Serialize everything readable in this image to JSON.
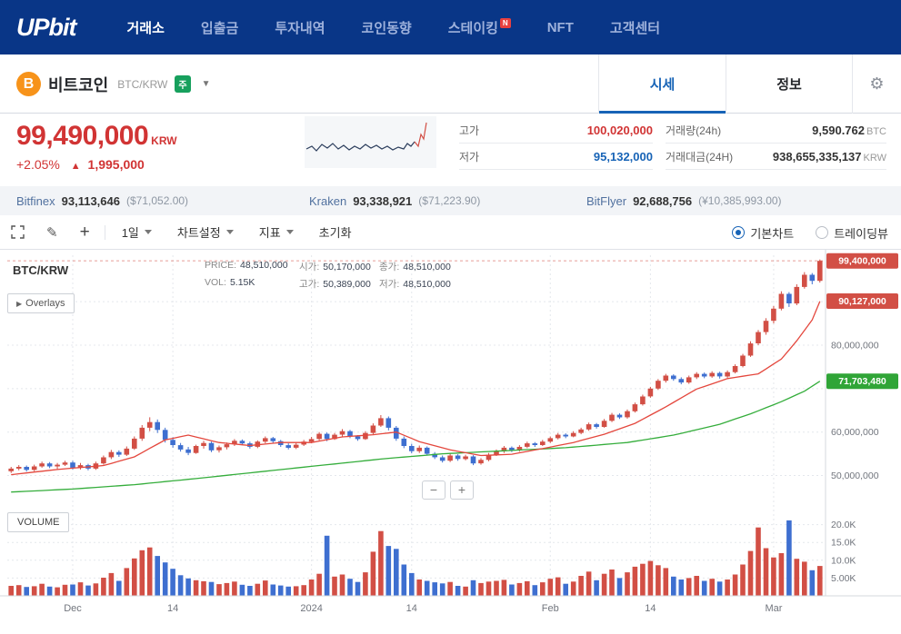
{
  "nav": {
    "logo": "UPbit",
    "items": [
      {
        "label": "거래소",
        "active": true
      },
      {
        "label": "입출금",
        "active": false
      },
      {
        "label": "투자내역",
        "active": false
      },
      {
        "label": "코인동향",
        "active": false
      },
      {
        "label": "스테이킹",
        "active": false,
        "badge": "N"
      },
      {
        "label": "NFT",
        "active": false
      },
      {
        "label": "고객센터",
        "active": false
      }
    ]
  },
  "coin_header": {
    "icon": "bitcoin-icon",
    "icon_letter": "B",
    "name": "비트코인",
    "pair": "BTC/KRW",
    "market_badge": "주",
    "tabs": [
      {
        "label": "시세",
        "active": true
      },
      {
        "label": "정보",
        "active": false
      }
    ]
  },
  "price_panel": {
    "price": "99,490,000",
    "currency": "KRW",
    "change_percent": "+2.05%",
    "change_arrow": "▲",
    "change_amount": "1,995,000",
    "stats": [
      {
        "label": "고가",
        "value": "100,020,000",
        "unit": ""
      },
      {
        "label": "거래량(24h)",
        "value": "9,590.762",
        "unit": "BTC"
      },
      {
        "label": "저가",
        "value": "95,132,000",
        "unit": ""
      },
      {
        "label": "거래대금(24H)",
        "value": "938,655,335,137",
        "unit": "KRW"
      }
    ],
    "sparkline": {
      "main": [
        [
          2,
          36
        ],
        [
          8,
          33
        ],
        [
          13,
          38
        ],
        [
          19,
          31
        ],
        [
          25,
          35
        ],
        [
          31,
          30
        ],
        [
          37,
          36
        ],
        [
          43,
          32
        ],
        [
          49,
          37
        ],
        [
          55,
          33
        ],
        [
          61,
          36
        ],
        [
          67,
          31
        ],
        [
          73,
          35
        ],
        [
          79,
          32
        ],
        [
          85,
          36
        ],
        [
          91,
          33
        ],
        [
          97,
          37
        ],
        [
          103,
          34
        ],
        [
          109,
          36
        ],
        [
          113,
          30
        ],
        [
          117,
          33
        ],
        [
          121,
          28
        ]
      ],
      "spike": [
        [
          121,
          28
        ],
        [
          125,
          33
        ],
        [
          128,
          20
        ],
        [
          131,
          25
        ],
        [
          134,
          7
        ]
      ],
      "main_color": "#2c3e5d",
      "spike_color": "#d24f45"
    }
  },
  "exchange_bar": {
    "items": [
      {
        "name": "Bitfinex",
        "price": "93,113,646",
        "converted": "($71,052.00)"
      },
      {
        "name": "Kraken",
        "price": "93,338,921",
        "converted": "($71,223.90)"
      },
      {
        "name": "BitFlyer",
        "price": "92,688,756",
        "converted": "(¥10,385,993.00)"
      }
    ]
  },
  "toolbar": {
    "interval": "1일",
    "settings": "차트설정",
    "indicator": "지표",
    "reset": "초기화",
    "options": [
      {
        "label": "기본차트",
        "selected": true
      },
      {
        "label": "트레이딩뷰",
        "selected": false
      }
    ]
  },
  "chart": {
    "symbol": "BTC/KRW",
    "overlays": "Overlays",
    "volume_title": "VOLUME",
    "zoom_out": "−",
    "zoom_in": "+",
    "info": {
      "price_label": "PRICE:",
      "price": "48,510,000",
      "open_label": "시가:",
      "open": "50,170,000",
      "close_label": "종가:",
      "close": "48,510,000",
      "vol_label": "VOL:",
      "vol": "5.15K",
      "high_label": "고가:",
      "high": "50,389,000",
      "low_label": "저가:",
      "low": "48,510,000"
    }
  },
  "chart_data": {
    "type": "candlestick",
    "price_unit": "million KRW",
    "volume_unit": "thousand BTC",
    "colors": {
      "up": "#d24f45",
      "down": "#3e6fd0",
      "ma_red": "#e4473d",
      "ma_green": "#34ad3b",
      "grid": "#e4e7ec",
      "axis": "#d4d8de",
      "tick_text": "#71757d"
    },
    "x_ticks": [
      {
        "index": 8,
        "label": "Dec"
      },
      {
        "index": 21,
        "label": "14"
      },
      {
        "index": 39,
        "label": "2024"
      },
      {
        "index": 52,
        "label": "14"
      },
      {
        "index": 70,
        "label": "Feb"
      },
      {
        "index": 83,
        "label": "14"
      },
      {
        "index": 99,
        "label": "Mar"
      }
    ],
    "price_ticks": [
      {
        "value": 50,
        "label": "50,000,000"
      },
      {
        "value": 60,
        "label": "60,000,000"
      },
      {
        "value": 70,
        "label": ""
      },
      {
        "value": 80,
        "label": "80,000,000"
      },
      {
        "value": 90,
        "label": ""
      }
    ],
    "volume_ticks": [
      {
        "value": 5,
        "label": "5.00K"
      },
      {
        "value": 10,
        "label": "10.0K"
      },
      {
        "value": 15,
        "label": "15.0K"
      },
      {
        "value": 20,
        "label": "20.0K"
      }
    ],
    "last_price": 99.4,
    "badges": [
      {
        "label": "99,400,000",
        "value": 99.4,
        "color": "#d24f45"
      },
      {
        "label": "90,127,000",
        "value": 90.127,
        "color": "#d24f45"
      },
      {
        "label": "71,703,480",
        "value": 71.703,
        "color": "#30a537"
      }
    ],
    "ma_red_points": [
      [
        0,
        50.2
      ],
      [
        6,
        51.4
      ],
      [
        12,
        52.3
      ],
      [
        16,
        54.3
      ],
      [
        20,
        58.2
      ],
      [
        23,
        59.3
      ],
      [
        27,
        57.6
      ],
      [
        31,
        56.9
      ],
      [
        35,
        57.6
      ],
      [
        39,
        57.6
      ],
      [
        43,
        58.9
      ],
      [
        47,
        59.4
      ],
      [
        50,
        60.0
      ],
      [
        53,
        57.8
      ],
      [
        57,
        55.9
      ],
      [
        61,
        54.6
      ],
      [
        65,
        54.9
      ],
      [
        69,
        56.2
      ],
      [
        73,
        57.6
      ],
      [
        77,
        59.5
      ],
      [
        81,
        62.0
      ],
      [
        85,
        65.8
      ],
      [
        89,
        69.9
      ],
      [
        93,
        72.3
      ],
      [
        97,
        73.4
      ],
      [
        100,
        76.8
      ],
      [
        102,
        81.0
      ],
      [
        104,
        85.8
      ],
      [
        105,
        90.1
      ]
    ],
    "ma_green_points": [
      [
        0,
        46.2
      ],
      [
        8,
        46.9
      ],
      [
        16,
        47.9
      ],
      [
        24,
        49.3
      ],
      [
        32,
        50.8
      ],
      [
        40,
        52.3
      ],
      [
        48,
        53.8
      ],
      [
        56,
        55.0
      ],
      [
        64,
        55.7
      ],
      [
        72,
        56.4
      ],
      [
        80,
        57.6
      ],
      [
        86,
        59.3
      ],
      [
        92,
        61.8
      ],
      [
        96,
        64.2
      ],
      [
        100,
        67.0
      ],
      [
        103,
        69.4
      ],
      [
        105,
        71.7
      ]
    ],
    "candles": [
      [
        51.0,
        52.0,
        50.6,
        51.6,
        2.8
      ],
      [
        51.6,
        52.4,
        51.2,
        52.0,
        3.0
      ],
      [
        52.0,
        52.3,
        50.9,
        51.3,
        2.5
      ],
      [
        51.3,
        52.5,
        51.0,
        52.1,
        2.7
      ],
      [
        52.1,
        53.2,
        51.8,
        52.8,
        3.4
      ],
      [
        52.8,
        53.1,
        51.7,
        52.1,
        2.6
      ],
      [
        52.1,
        52.9,
        51.5,
        52.5,
        2.4
      ],
      [
        52.5,
        53.4,
        52.2,
        53.0,
        3.1
      ],
      [
        53.0,
        53.4,
        51.4,
        51.8,
        3.2
      ],
      [
        51.8,
        52.9,
        51.4,
        52.4,
        3.8
      ],
      [
        52.4,
        52.7,
        51.2,
        51.6,
        2.9
      ],
      [
        51.6,
        53.2,
        51.3,
        52.8,
        3.5
      ],
      [
        52.8,
        54.6,
        52.5,
        54.2,
        5.1
      ],
      [
        54.2,
        55.9,
        53.8,
        55.4,
        6.4
      ],
      [
        55.4,
        55.8,
        54.3,
        54.8,
        4.2
      ],
      [
        54.8,
        56.7,
        54.5,
        56.2,
        7.8
      ],
      [
        56.2,
        59.0,
        55.9,
        58.5,
        10.5
      ],
      [
        58.5,
        61.6,
        58.0,
        61.0,
        12.8
      ],
      [
        61.0,
        63.4,
        60.2,
        62.3,
        13.6
      ],
      [
        62.3,
        62.9,
        59.8,
        60.5,
        11.2
      ],
      [
        60.5,
        61.0,
        57.6,
        58.2,
        9.4
      ],
      [
        58.2,
        58.8,
        56.4,
        57.0,
        7.6
      ],
      [
        57.0,
        57.5,
        55.5,
        56.0,
        5.8
      ],
      [
        56.0,
        56.6,
        54.7,
        55.2,
        4.9
      ],
      [
        55.2,
        57.1,
        55.0,
        56.8,
        4.4
      ],
      [
        56.8,
        58.0,
        56.2,
        57.5,
        4.1
      ],
      [
        57.5,
        57.8,
        55.4,
        55.8,
        3.9
      ],
      [
        55.8,
        56.9,
        55.3,
        56.5,
        3.3
      ],
      [
        56.5,
        57.6,
        56.0,
        57.2,
        3.6
      ],
      [
        57.2,
        58.4,
        56.8,
        58.0,
        4.0
      ],
      [
        58.0,
        58.3,
        57.0,
        57.4,
        3.1
      ],
      [
        57.4,
        57.8,
        56.2,
        56.6,
        2.8
      ],
      [
        56.6,
        58.1,
        56.3,
        57.8,
        3.4
      ],
      [
        57.8,
        59.0,
        57.4,
        58.6,
        4.3
      ],
      [
        58.6,
        58.9,
        57.5,
        57.9,
        3.2
      ],
      [
        57.9,
        58.2,
        56.6,
        57.0,
        2.9
      ],
      [
        57.0,
        57.4,
        56.0,
        56.4,
        2.6
      ],
      [
        56.4,
        57.5,
        56.1,
        57.1,
        2.7
      ],
      [
        57.1,
        58.2,
        56.8,
        57.8,
        3.0
      ],
      [
        57.8,
        58.9,
        57.4,
        58.4,
        4.6
      ],
      [
        58.4,
        60.0,
        58.1,
        59.6,
        6.2
      ],
      [
        59.6,
        59.9,
        57.9,
        58.4,
        16.9
      ],
      [
        58.4,
        59.8,
        58.2,
        59.4,
        5.4
      ],
      [
        59.4,
        60.7,
        59.0,
        60.2,
        6.0
      ],
      [
        60.2,
        60.5,
        58.6,
        59.0,
        4.8
      ],
      [
        59.0,
        59.3,
        58.0,
        58.4,
        3.9
      ],
      [
        58.4,
        60.2,
        58.2,
        59.8,
        6.6
      ],
      [
        59.8,
        62.0,
        59.5,
        61.5,
        12.4
      ],
      [
        61.5,
        63.9,
        61.2,
        63.2,
        18.2
      ],
      [
        63.2,
        63.6,
        60.4,
        61.0,
        14.0
      ],
      [
        61.0,
        61.4,
        58.0,
        58.5,
        13.2
      ],
      [
        58.5,
        59.0,
        56.3,
        56.8,
        8.8
      ],
      [
        56.8,
        57.3,
        55.1,
        55.6,
        6.4
      ],
      [
        55.6,
        56.9,
        55.2,
        56.4,
        4.6
      ],
      [
        56.4,
        56.7,
        54.6,
        55.0,
        4.2
      ],
      [
        55.0,
        55.4,
        53.8,
        54.2,
        3.8
      ],
      [
        54.2,
        54.6,
        53.0,
        53.4,
        3.5
      ],
      [
        53.4,
        55.0,
        53.1,
        54.6,
        3.9
      ],
      [
        54.6,
        54.9,
        53.4,
        53.8,
        2.8
      ],
      [
        53.8,
        54.8,
        53.5,
        54.4,
        2.6
      ],
      [
        54.4,
        54.7,
        52.4,
        52.8,
        4.4
      ],
      [
        52.8,
        54.0,
        52.5,
        53.6,
        3.6
      ],
      [
        53.6,
        55.2,
        53.3,
        54.8,
        4.0
      ],
      [
        54.8,
        56.0,
        54.5,
        55.6,
        4.2
      ],
      [
        55.6,
        56.8,
        55.2,
        56.4,
        4.5
      ],
      [
        56.4,
        56.7,
        55.4,
        55.8,
        3.2
      ],
      [
        55.8,
        57.0,
        55.5,
        56.6,
        3.6
      ],
      [
        56.6,
        57.8,
        56.3,
        57.4,
        4.1
      ],
      [
        57.4,
        57.7,
        56.6,
        57.0,
        3.0
      ],
      [
        57.0,
        58.2,
        56.8,
        57.8,
        3.8
      ],
      [
        57.8,
        59.0,
        57.5,
        58.6,
        4.8
      ],
      [
        58.6,
        59.8,
        58.3,
        59.4,
        5.2
      ],
      [
        59.4,
        59.7,
        58.6,
        59.0,
        3.4
      ],
      [
        59.0,
        60.2,
        58.8,
        59.8,
        4.0
      ],
      [
        59.8,
        61.0,
        59.5,
        60.6,
        5.6
      ],
      [
        60.6,
        62.2,
        60.3,
        61.8,
        6.8
      ],
      [
        61.8,
        62.1,
        60.8,
        61.2,
        4.4
      ],
      [
        61.2,
        63.0,
        61.0,
        62.6,
        6.2
      ],
      [
        62.6,
        64.4,
        62.3,
        64.0,
        7.4
      ],
      [
        64.0,
        64.3,
        63.0,
        63.4,
        5.0
      ],
      [
        63.4,
        65.2,
        63.1,
        64.8,
        6.6
      ],
      [
        64.8,
        66.8,
        64.5,
        66.4,
        8.2
      ],
      [
        66.4,
        68.6,
        66.1,
        68.2,
        9.0
      ],
      [
        68.2,
        70.4,
        67.9,
        70.0,
        9.8
      ],
      [
        70.0,
        72.2,
        69.7,
        71.8,
        8.6
      ],
      [
        71.8,
        73.4,
        71.4,
        73.0,
        7.8
      ],
      [
        73.0,
        73.3,
        71.8,
        72.2,
        5.4
      ],
      [
        72.2,
        72.6,
        71.0,
        71.4,
        4.6
      ],
      [
        71.4,
        73.0,
        71.1,
        72.6,
        5.0
      ],
      [
        72.6,
        73.8,
        72.2,
        73.4,
        5.6
      ],
      [
        73.4,
        73.7,
        72.4,
        72.8,
        4.2
      ],
      [
        72.8,
        74.0,
        72.5,
        73.6,
        4.8
      ],
      [
        73.6,
        73.9,
        72.3,
        72.8,
        4.0
      ],
      [
        72.8,
        74.2,
        72.5,
        73.8,
        4.6
      ],
      [
        73.8,
        75.6,
        73.5,
        75.2,
        6.0
      ],
      [
        75.2,
        78.0,
        74.9,
        77.6,
        8.8
      ],
      [
        77.6,
        80.9,
        77.3,
        80.4,
        12.6
      ],
      [
        80.4,
        83.5,
        80.0,
        83.0,
        19.2
      ],
      [
        83.0,
        86.2,
        82.4,
        85.6,
        13.4
      ],
      [
        85.6,
        89.0,
        85.0,
        88.4,
        10.8
      ],
      [
        88.4,
        92.4,
        88.0,
        91.8,
        12.0
      ],
      [
        91.8,
        92.2,
        88.8,
        89.6,
        21.2
      ],
      [
        89.6,
        94.0,
        89.2,
        93.4,
        10.4
      ],
      [
        93.4,
        96.8,
        93.0,
        96.2,
        9.6
      ],
      [
        96.2,
        96.6,
        94.0,
        94.8,
        7.2
      ],
      [
        94.8,
        99.7,
        94.4,
        99.4,
        8.4
      ]
    ]
  }
}
